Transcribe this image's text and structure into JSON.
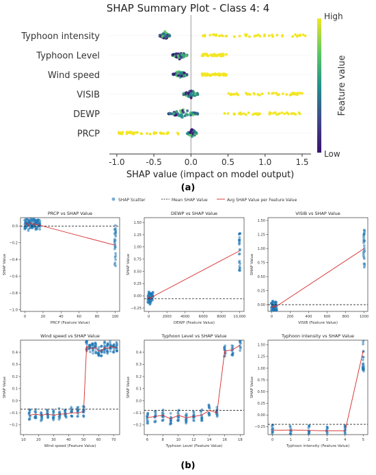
{
  "chart_data": [
    {
      "id": "summary",
      "type": "scatter",
      "title": "SHAP Summary Plot - Class 4: 4",
      "xlabel": "SHAP value (impact on model output)",
      "xlim": [
        -1.1,
        1.62
      ],
      "xticks": [
        "-1.0",
        "-0.5",
        "0.0",
        "0.5",
        "1.0",
        "1.5"
      ],
      "xtick_values": [
        -1.0,
        -0.5,
        0.0,
        0.5,
        1.0,
        1.5
      ],
      "features": [
        "Typhoon intensity",
        "Typhoon Level",
        "Wind speed",
        "VISIB",
        "DEWP",
        "PRCP"
      ],
      "colorbar": {
        "label": "Feature value",
        "high": "High",
        "low": "Low"
      },
      "caption": "(a)",
      "series": [
        {
          "feature": "Typhoon intensity",
          "low_cluster": [
            -0.42,
            -0.28
          ],
          "high_range": [
            0.15,
            1.55
          ]
        },
        {
          "feature": "Typhoon Level",
          "low_cluster": [
            -0.25,
            -0.05
          ],
          "high_range": [
            0.15,
            0.48
          ]
        },
        {
          "feature": "Wind speed",
          "low_cluster": [
            -0.25,
            -0.05
          ],
          "high_range": [
            0.15,
            0.48
          ]
        },
        {
          "feature": "VISIB",
          "low_cluster": [
            -0.1,
            0.1
          ],
          "high_range": [
            0.5,
            1.52
          ]
        },
        {
          "feature": "DEWP",
          "low_cluster": [
            -0.3,
            0.1
          ],
          "high_range": [
            0.45,
            1.48
          ]
        },
        {
          "feature": "PRCP",
          "low_cluster": [
            -0.05,
            0.08
          ],
          "high_range": [
            -1.0,
            -0.15
          ]
        }
      ]
    },
    {
      "id": "dependence",
      "type": "scatter",
      "legend": [
        "SHAP Scatter",
        "Mean SHAP Value",
        "Avg SHAP Value per Feature Value"
      ],
      "legend_position": "top-center",
      "caption": "(b)",
      "ylabel": "SHAP Value",
      "panels": [
        {
          "title": "PRCP vs SHAP Value",
          "xlabel": "PRCP (Feature Value)",
          "xlim": [
            -5,
            105
          ],
          "ylim": [
            -1.02,
            0.1
          ],
          "xticks": [
            0,
            20,
            40,
            60,
            80,
            100
          ],
          "xticklabels": [
            "0",
            "20",
            "40",
            "60",
            "80",
            "100"
          ],
          "yticks": [
            -1.0,
            -0.8,
            -0.6,
            -0.4,
            -0.2,
            0.0
          ],
          "yticklabels": [
            "−1.0",
            "−0.8",
            "−0.6",
            "−0.4",
            "−0.2",
            "0.0"
          ],
          "mean_line": 0.0,
          "avg_x": [
            0,
            2,
            4,
            6,
            8,
            10,
            12,
            14,
            16,
            100
          ],
          "avg_y": [
            0.02,
            0.03,
            0.01,
            0.04,
            0.02,
            0.03,
            0.01,
            0.02,
            0.01,
            -0.23
          ]
        },
        {
          "title": "DEWP vs SHAP Value",
          "xlabel": "DEWP (Feature Value)",
          "xlim": [
            -500,
            10500
          ],
          "ylim": [
            -0.32,
            1.6
          ],
          "xticks": [
            0,
            2000,
            4000,
            6000,
            8000,
            10000
          ],
          "xticklabels": [
            "0",
            "2000",
            "4000",
            "6000",
            "8000",
            "10,000"
          ],
          "yticks": [
            -0.25,
            0.0,
            0.25,
            0.5,
            0.75,
            1.0,
            1.25,
            1.5
          ],
          "yticklabels": [
            "−0.25",
            "0.00",
            "0.25",
            "0.50",
            "0.75",
            "1.00",
            "1.25",
            "1.50"
          ],
          "mean_line": -0.06,
          "avg_x": [
            -50,
            50,
            150,
            250,
            400,
            10000
          ],
          "avg_y": [
            -0.05,
            -0.02,
            -0.06,
            -0.03,
            -0.02,
            0.92
          ]
        },
        {
          "title": "VISIB vs SHAP Value",
          "xlabel": "VISIB (Feature Value)",
          "xlim": [
            -40,
            1040
          ],
          "ylim": [
            -0.12,
            1.55
          ],
          "xticks": [
            0,
            200,
            400,
            600,
            800,
            1000
          ],
          "xticklabels": [
            "0",
            "200",
            "400",
            "600",
            "800",
            "1000"
          ],
          "yticks": [
            0.0,
            0.25,
            0.5,
            0.75,
            1.0,
            1.25,
            1.5
          ],
          "yticklabels": [
            "0.00",
            "0.25",
            "0.50",
            "0.75",
            "1.00",
            "1.25",
            "1.50"
          ],
          "mean_line": 0.0,
          "avg_x": [
            0,
            10,
            20,
            30,
            40,
            50,
            1000
          ],
          "avg_y": [
            -0.05,
            -0.03,
            -0.06,
            -0.02,
            -0.04,
            -0.03,
            1.0
          ]
        },
        {
          "title": "Wind speed vs SHAP Value",
          "xlabel": "Wind speed (Feature Value)",
          "xlim": [
            8,
            74
          ],
          "ylim": [
            -0.28,
            0.5
          ],
          "xticks": [
            10,
            20,
            30,
            40,
            50,
            60,
            70
          ],
          "xticklabels": [
            "10",
            "20",
            "30",
            "40",
            "50",
            "60",
            "70"
          ],
          "yticks": [
            -0.2,
            -0.1,
            0.0,
            0.1,
            0.2,
            0.3,
            0.4
          ],
          "yticklabels": [
            "−0.2",
            "−0.1",
            "0.0",
            "0.1",
            "0.2",
            "0.3",
            "0.4"
          ],
          "mean_line": -0.07,
          "avg_x": [
            14,
            18,
            22,
            26,
            30,
            34,
            38,
            42,
            46,
            50,
            52,
            54,
            56,
            58,
            60,
            62,
            64,
            66,
            68,
            70,
            72
          ],
          "avg_y": [
            -0.12,
            -0.11,
            -0.12,
            -0.11,
            -0.12,
            -0.11,
            -0.11,
            -0.1,
            -0.1,
            -0.09,
            0.45,
            0.44,
            0.43,
            0.44,
            0.41,
            0.41,
            0.44,
            0.43,
            0.45,
            0.44,
            0.44
          ]
        },
        {
          "title": "Typhoon Level vs SHAP Value",
          "xlabel": "Typhoon Level (Feature Value)",
          "xlim": [
            5.6,
            18.5
          ],
          "ylim": [
            -0.28,
            0.5
          ],
          "xticks": [
            6,
            8,
            10,
            12,
            14,
            16,
            18
          ],
          "xticklabels": [
            "6",
            "8",
            "10",
            "12",
            "14",
            "16",
            "18"
          ],
          "yticks": [
            -0.2,
            -0.1,
            0.0,
            0.1,
            0.2,
            0.3,
            0.4
          ],
          "yticklabels": [
            "−0.2",
            "−0.1",
            "0.0",
            "0.1",
            "0.2",
            "0.3",
            "0.4"
          ],
          "mean_line": -0.08,
          "avg_x": [
            6,
            7,
            8,
            9,
            10,
            11,
            12,
            13,
            14,
            15,
            16,
            17,
            18
          ],
          "avg_y": [
            -0.14,
            -0.13,
            -0.12,
            -0.15,
            -0.12,
            -0.14,
            -0.13,
            -0.12,
            -0.08,
            -0.1,
            0.41,
            0.42,
            0.46
          ]
        },
        {
          "title": "Typhoon intensity vs SHAP Value",
          "xlabel": "Typhoon intensity (Feature Value)",
          "xlim": [
            -0.25,
            5.25
          ],
          "ylim": [
            -0.42,
            1.6
          ],
          "xticks": [
            0,
            1,
            2,
            3,
            4,
            5
          ],
          "xticklabels": [
            "0",
            "1",
            "2",
            "3",
            "4",
            "5"
          ],
          "yticks": [
            -0.25,
            0.0,
            0.25,
            0.5,
            0.75,
            1.0,
            1.25,
            1.5
          ],
          "yticklabels": [
            "−0.25",
            "0.00",
            "0.25",
            "0.50",
            "0.75",
            "1.00",
            "1.25",
            "1.50"
          ],
          "mean_line": -0.2,
          "avg_x": [
            0,
            1,
            2,
            3,
            4,
            5
          ],
          "avg_y": [
            -0.33,
            -0.32,
            -0.33,
            -0.34,
            -0.34,
            1.38
          ]
        }
      ]
    }
  ],
  "colors": {
    "scatter": "#1f77b4",
    "avg_line": "#d62728",
    "mean_line": "#000000",
    "high": "#f2e624",
    "low": "#3b0f70"
  }
}
